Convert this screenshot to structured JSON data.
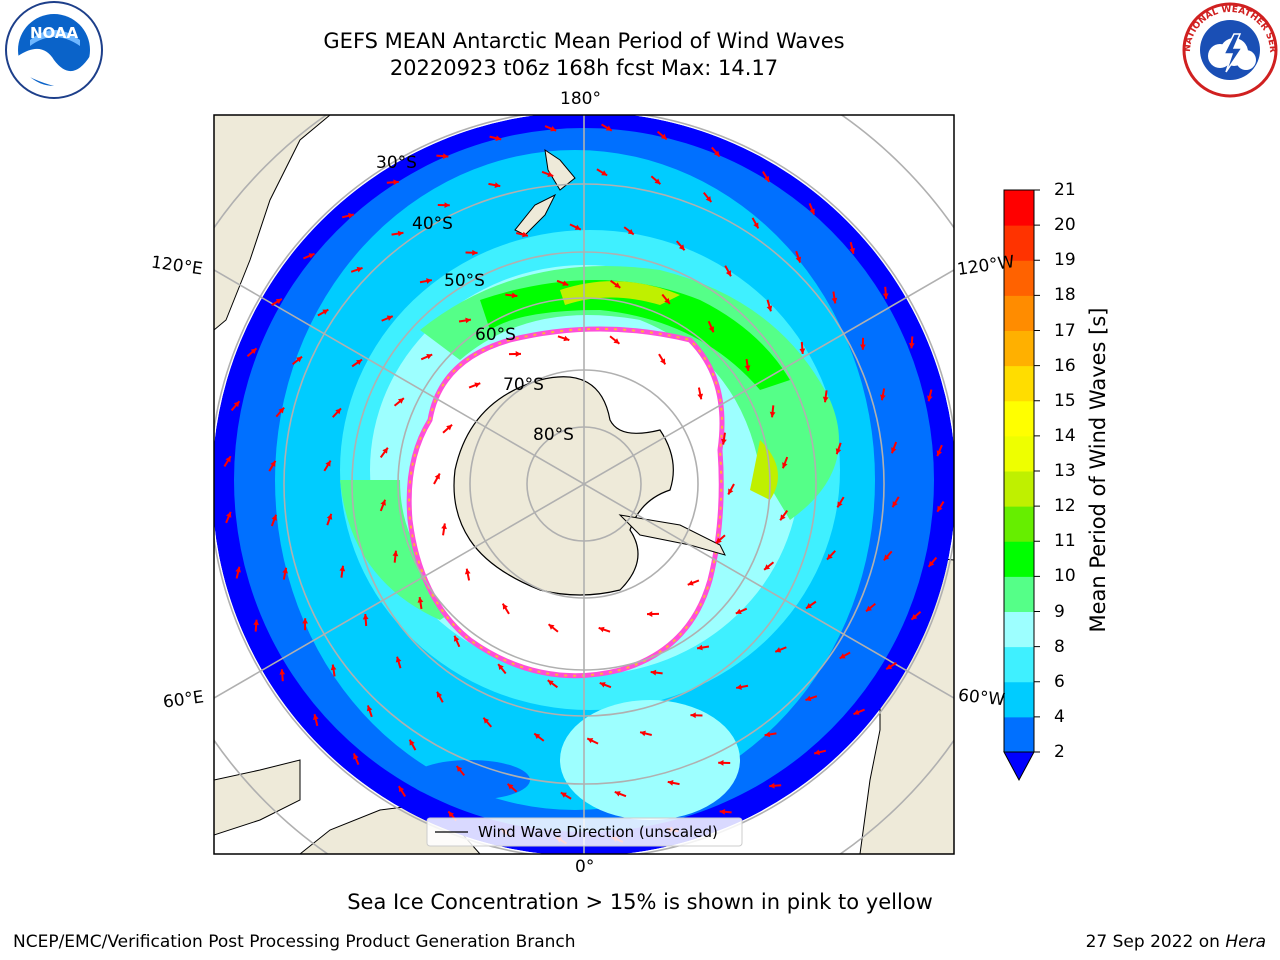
{
  "header": {
    "title_line1": "GEFS MEAN Antarctic Mean Period of Wind Waves",
    "title_line2": "20220923 t06z 168h fcst   Max: 14.17"
  },
  "logos": {
    "left": "noaa-logo",
    "right": "nws-logo",
    "left_text": "NOAA",
    "right_text": "NATIONAL WEATHER SERVICE"
  },
  "map": {
    "projection": "south-polar-stereographic",
    "longitude_labels": {
      "top": "180°",
      "bottom": "0°",
      "upper_left": "120°E",
      "upper_right": "120°W",
      "lower_left": "60°E",
      "lower_right": "60°W"
    },
    "latitude_labels": [
      "30°S",
      "40°S",
      "50°S",
      "60°S",
      "70°S",
      "80°S"
    ],
    "legend": "Wind Wave Direction (unscaled)",
    "arrow_color": "#ff0000",
    "land_color": "#eeead9",
    "ice_edge_colors": [
      "#ff4fd8",
      "#ffb13b"
    ]
  },
  "colorbar": {
    "label": "Mean Period of Wind Waves [s]",
    "ticks": [
      "2",
      "4",
      "6",
      "8",
      "9",
      "10",
      "11",
      "12",
      "13",
      "14",
      "15",
      "16",
      "17",
      "18",
      "19",
      "20",
      "21"
    ],
    "colors": [
      "#0000ff",
      "#0070ff",
      "#00ccff",
      "#3ff0ff",
      "#9dffff",
      "#55ff88",
      "#00ff00",
      "#66ee00",
      "#bff000",
      "#eeff00",
      "#ffff00",
      "#ffdd00",
      "#ffb000",
      "#ff8c00",
      "#ff6200",
      "#ff3300",
      "#ff0000"
    ],
    "extend": "min"
  },
  "footer": {
    "note": "Sea Ice Concentration > 15% is shown in pink to yellow",
    "credit": "NCEP/EMC/Verification Post Processing Product Generation Branch",
    "date_prefix": "27 Sep 2022 on",
    "machine": "Hera"
  }
}
